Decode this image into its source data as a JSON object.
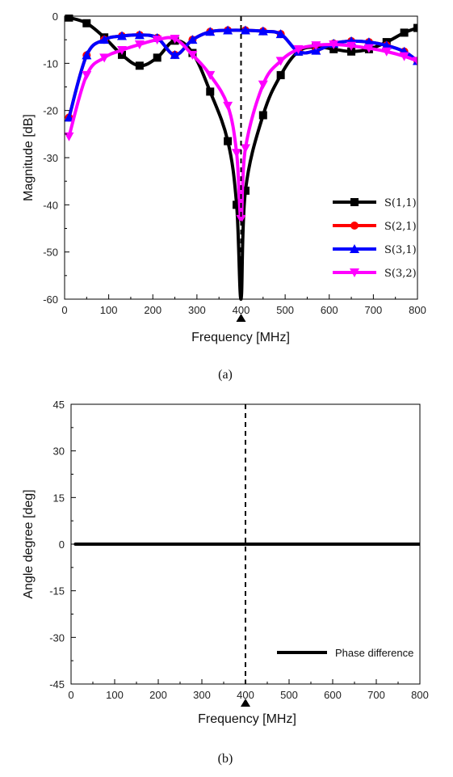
{
  "chart_data": [
    {
      "type": "line",
      "caption": "(a)",
      "xlabel": "Frequency [MHz]",
      "ylabel": "Magnitude [dB]",
      "xlim": [
        0,
        800
      ],
      "ylim": [
        -60,
        0
      ],
      "xticks": [
        0,
        100,
        200,
        300,
        400,
        500,
        600,
        700,
        800
      ],
      "yticks": [
        0,
        -10,
        -20,
        -30,
        -40,
        -50,
        -60
      ],
      "marker_line_x": 400,
      "legend_position": "right-center",
      "series": [
        {
          "name": "S(1,1)",
          "color": "#000000",
          "marker": "square",
          "x": [
            10,
            50,
            90,
            130,
            170,
            210,
            250,
            290,
            330,
            370,
            390,
            400,
            410,
            450,
            490,
            530,
            570,
            610,
            650,
            690,
            730,
            770,
            800
          ],
          "y": [
            -0.3,
            -1.5,
            -4.5,
            -8.2,
            -10.5,
            -8.8,
            -5.2,
            -7.8,
            -16.0,
            -26.5,
            -40.0,
            -60.0,
            -37.0,
            -21.0,
            -12.5,
            -7.5,
            -6.5,
            -7.0,
            -7.5,
            -7.0,
            -5.5,
            -3.5,
            -2.5
          ]
        },
        {
          "name": "S(2,1)",
          "color": "#ff0000",
          "marker": "circle",
          "x": [
            10,
            50,
            90,
            130,
            170,
            210,
            250,
            290,
            330,
            370,
            410,
            450,
            490,
            530,
            570,
            610,
            650,
            690,
            730,
            770,
            800
          ],
          "y": [
            -21.5,
            -8.3,
            -5.0,
            -4.2,
            -4.0,
            -4.6,
            -8.2,
            -5.0,
            -3.3,
            -3.0,
            -3.0,
            -3.2,
            -3.8,
            -7.5,
            -7.3,
            -5.8,
            -5.3,
            -5.5,
            -6.2,
            -7.5,
            -9.5
          ]
        },
        {
          "name": "S(3,1)",
          "color": "#0000ff",
          "marker": "triangle-up",
          "x": [
            10,
            50,
            90,
            130,
            170,
            210,
            250,
            290,
            330,
            370,
            410,
            450,
            490,
            530,
            570,
            610,
            650,
            690,
            730,
            770,
            800
          ],
          "y": [
            -21.5,
            -8.3,
            -5.0,
            -4.2,
            -4.0,
            -4.6,
            -8.2,
            -5.0,
            -3.3,
            -3.0,
            -3.0,
            -3.2,
            -3.8,
            -7.5,
            -7.3,
            -5.8,
            -5.3,
            -5.5,
            -6.2,
            -7.5,
            -9.5
          ]
        },
        {
          "name": "S(3,2)",
          "color": "#ff00ff",
          "marker": "triangle-down",
          "x": [
            10,
            50,
            90,
            130,
            170,
            210,
            250,
            290,
            330,
            370,
            390,
            400,
            410,
            450,
            490,
            530,
            570,
            610,
            650,
            690,
            730,
            770,
            800
          ],
          "y": [
            -25.5,
            -12.5,
            -8.8,
            -7.2,
            -6.0,
            -5.0,
            -4.8,
            -8.2,
            -12.5,
            -19.0,
            -29.0,
            -43.0,
            -28.0,
            -14.5,
            -9.5,
            -7.0,
            -6.2,
            -6.0,
            -6.3,
            -6.8,
            -7.5,
            -8.5,
            -9.5
          ]
        }
      ]
    },
    {
      "type": "line",
      "caption": "(b)",
      "xlabel": "Frequency [MHz]",
      "ylabel": "Angle degree [deg]",
      "xlim": [
        0,
        800
      ],
      "ylim": [
        -45,
        45
      ],
      "xticks": [
        0,
        100,
        200,
        300,
        400,
        500,
        600,
        700,
        800
      ],
      "yticks": [
        45,
        30,
        15,
        0,
        -15,
        -30,
        -45
      ],
      "marker_line_x": 400,
      "legend_position": "bottom-right",
      "series": [
        {
          "name": "Phase difference",
          "color": "#000000",
          "x": [
            10,
            800
          ],
          "y": [
            0,
            0
          ]
        }
      ]
    }
  ]
}
